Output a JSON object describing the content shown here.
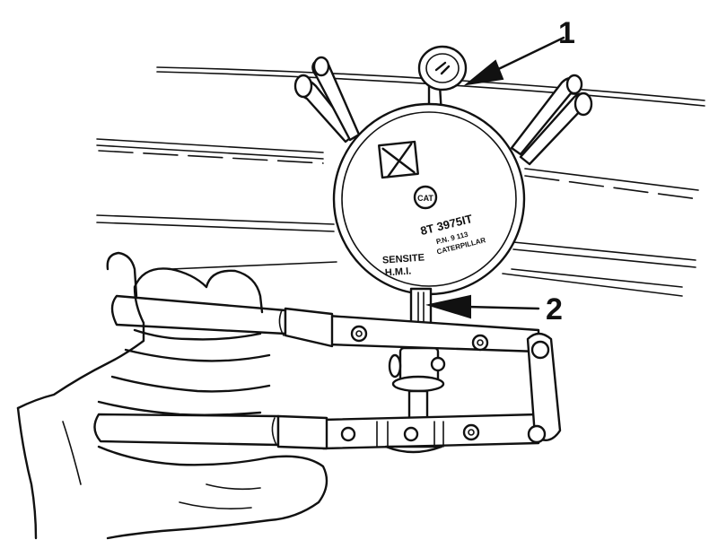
{
  "figure": {
    "callouts": [
      {
        "label": "1"
      },
      {
        "label": "2"
      }
    ],
    "gauge": {
      "model": "8T 3975IT",
      "line2": "P.N.  9  113",
      "line3": "CATERPILLAR",
      "scale": "SENSITE",
      "scale_sub": "H.M.I.",
      "logo": "CAT"
    }
  }
}
